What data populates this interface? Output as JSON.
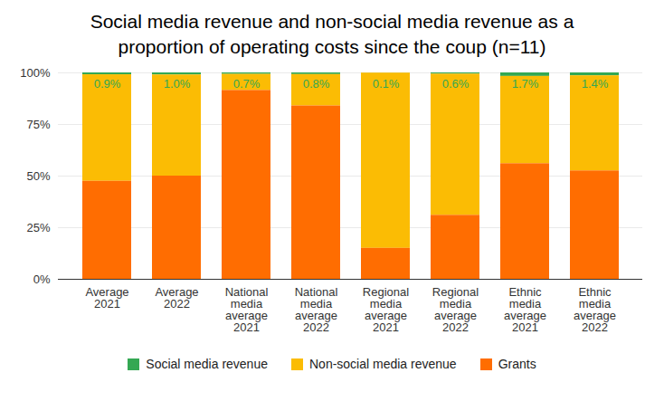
{
  "chart_data": {
    "type": "bar",
    "title": "Social media revenue and non-social media revenue as a proportion of operating costs since the coup (n=11)",
    "stacked": true,
    "grid": true,
    "legend": "bottom",
    "data_labels": true,
    "categories": [
      "Average 2021",
      "Average 2022",
      "National media average 2021",
      "National media average 2022",
      "Regional media average 2021",
      "Regional media average 2022",
      "Ethnic media average 2021",
      "Ethnic media average 2022"
    ],
    "ylim": [
      0,
      100
    ],
    "yticks": [
      {
        "value": 0,
        "label": "0%"
      },
      {
        "value": 25,
        "label": "25%"
      },
      {
        "value": 50,
        "label": "50%"
      },
      {
        "value": 75,
        "label": "75%"
      },
      {
        "value": 100,
        "label": "100%"
      }
    ],
    "series": [
      {
        "name": "Social media revenue",
        "color": "#34a853",
        "values": [
          0.9,
          1.0,
          0.7,
          0.8,
          0.1,
          0.6,
          1.7,
          1.4
        ],
        "value_labels": [
          "0.9%",
          "1.0%",
          "0.7%",
          "0.8%",
          "0.1%",
          "0.6%",
          "1.7%",
          "1.4%"
        ]
      },
      {
        "name": "Non-social media revenue",
        "color": "#fbbc04",
        "values": [
          51.6,
          49.0,
          7.8,
          15.2,
          84.9,
          68.4,
          42.3,
          46.1
        ]
      },
      {
        "name": "Grants",
        "color": "#ff6d01",
        "values": [
          47.5,
          50.0,
          91.5,
          84.0,
          15.0,
          31.0,
          56.0,
          52.5
        ]
      }
    ]
  }
}
